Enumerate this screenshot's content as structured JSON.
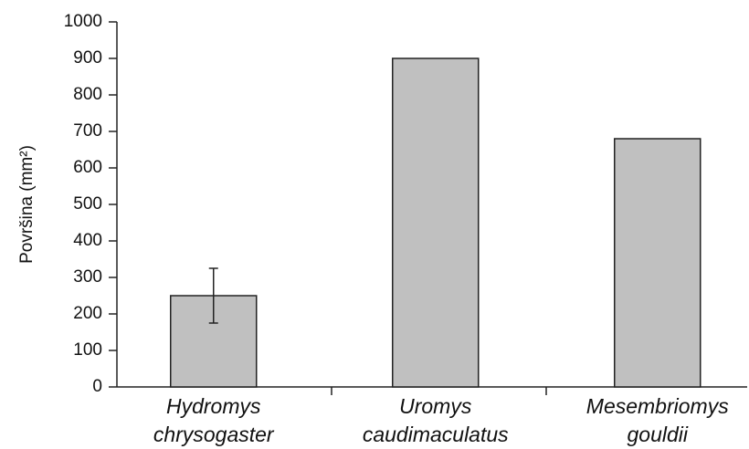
{
  "chart_data": {
    "type": "bar",
    "ylabel": "Površina (mm²)",
    "categories": [
      [
        "Hydromys",
        "chrysogaster"
      ],
      [
        "Uromys",
        "caudimaculatus"
      ],
      [
        "Mesembriomys",
        "gouldii"
      ]
    ],
    "values": [
      250,
      900,
      680
    ],
    "errors": [
      75,
      null,
      null
    ],
    "color": "#c0c0c0",
    "ylim": [
      0,
      1000
    ],
    "yticks": [
      0,
      100,
      200,
      300,
      400,
      500,
      600,
      700,
      800,
      900,
      1000
    ],
    "grid": false
  }
}
